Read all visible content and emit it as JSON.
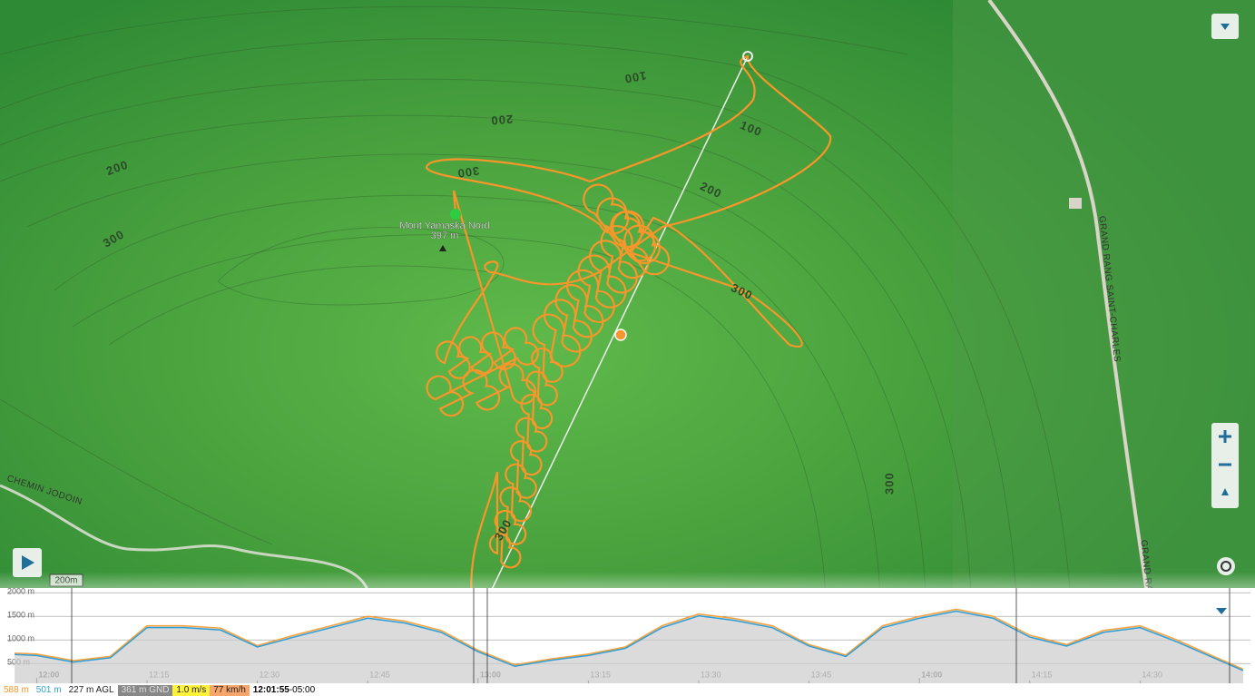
{
  "map": {
    "place": {
      "name": "Mont Yamaska Nord",
      "elevation": "397 m"
    },
    "contour_labels": [
      "100",
      "200",
      "200",
      "300",
      "300",
      "100",
      "200",
      "300",
      "300",
      "300"
    ],
    "roads": [
      "CHEMIN JODOIN",
      "GRAND RANG SAINT-CHARLES",
      "GRAND RANG"
    ],
    "scale": "200m"
  },
  "chart_data": {
    "type": "area",
    "x": [
      "11:57",
      "12:00",
      "12:05",
      "12:10",
      "12:15",
      "12:20",
      "12:25",
      "12:30",
      "12:35",
      "12:40",
      "12:45",
      "12:50",
      "12:55",
      "13:00",
      "13:05",
      "13:10",
      "13:15",
      "13:20",
      "13:25",
      "13:30",
      "13:35",
      "13:40",
      "13:45",
      "13:50",
      "13:55",
      "14:00",
      "14:05",
      "14:10",
      "14:15",
      "14:20",
      "14:25",
      "14:30",
      "14:35",
      "14:40",
      "14:44"
    ],
    "series": [
      {
        "color": "#f7a13a",
        "values": [
          720,
          700,
          560,
          650,
          1300,
          1300,
          1250,
          880,
          1100,
          1300,
          1500,
          1400,
          1200,
          780,
          470,
          600,
          700,
          850,
          1300,
          1550,
          1450,
          1300,
          900,
          680,
          1300,
          1500,
          1650,
          1500,
          1100,
          900,
          1200,
          1300,
          1000,
          650,
          380
        ]
      },
      {
        "color": "#2f9fd8",
        "values": [
          690,
          670,
          530,
          620,
          1260,
          1260,
          1210,
          850,
          1060,
          1260,
          1460,
          1360,
          1160,
          750,
          440,
          570,
          670,
          820,
          1260,
          1510,
          1410,
          1260,
          870,
          650,
          1260,
          1460,
          1610,
          1460,
          1060,
          870,
          1160,
          1260,
          960,
          620,
          350
        ]
      }
    ],
    "ylim": [
      80,
      2100
    ],
    "yticks": [
      {
        "value": 2000,
        "label": "2000 m"
      },
      {
        "value": 1500,
        "label": "1500 m"
      },
      {
        "value": 1000,
        "label": "1000 m"
      },
      {
        "value": 500,
        "label": "500 m"
      }
    ],
    "xlim": [
      "11:56",
      "14:45"
    ],
    "xticks": [
      "12:00",
      "12:15",
      "12:30",
      "12:45",
      "13:00",
      "13:15",
      "13:30",
      "13:45",
      "14:00",
      "14:15",
      "14:30"
    ]
  },
  "status": {
    "gps_alt": "588 m",
    "baro_alt": "501 m",
    "agl": "227 m AGL",
    "gnd": "361 m GND",
    "vario": "1.0 m/s",
    "speed": "77 km/h",
    "time": "12:01:55",
    "tz": "-05:00"
  }
}
